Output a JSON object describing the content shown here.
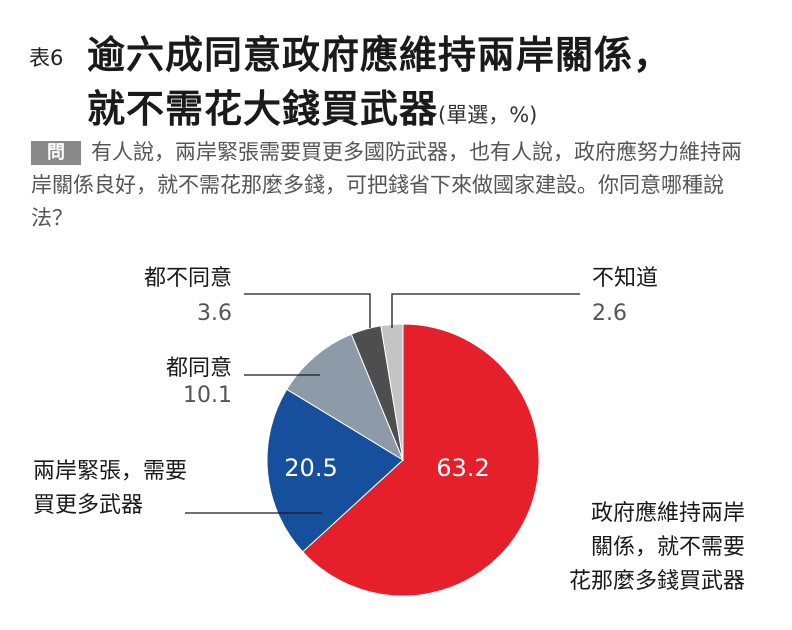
{
  "title": {
    "tag": "表6",
    "line1": "逾六成同意政府應維持兩岸關係，",
    "line2": "就不需花大錢買武器",
    "unit": "(單選，%)"
  },
  "question": {
    "badge": "問",
    "text": "有人說，兩岸緊張需要買更多國防武器，也有人說，政府應努力維持兩岸關係良好，就不需花那麼多錢，可把錢省下來做國家建設。你同意哪種說法？"
  },
  "chart_data": {
    "type": "pie",
    "start_angle_deg": 0,
    "direction": "clockwise",
    "slices": [
      {
        "label_lines": [
          "政府應維持兩岸",
          "關係，就不需要",
          "花那麼多錢買武器"
        ],
        "value": 63.2,
        "value_text": "63.2",
        "color": "#e5202b"
      },
      {
        "label_lines": [
          "兩岸緊張，需要",
          "買更多武器"
        ],
        "value": 20.5,
        "value_text": "20.5",
        "color": "#164f9c"
      },
      {
        "label_lines": [
          "都同意"
        ],
        "value": 10.1,
        "value_text": "10.1",
        "color": "#8c9ba7"
      },
      {
        "label_lines": [
          "都不同意"
        ],
        "value": 3.6,
        "value_text": "3.6",
        "color": "#4e4e4e"
      },
      {
        "label_lines": [
          "不知道"
        ],
        "value": 2.6,
        "value_text": "2.6",
        "color": "#c4c4c4"
      }
    ]
  }
}
